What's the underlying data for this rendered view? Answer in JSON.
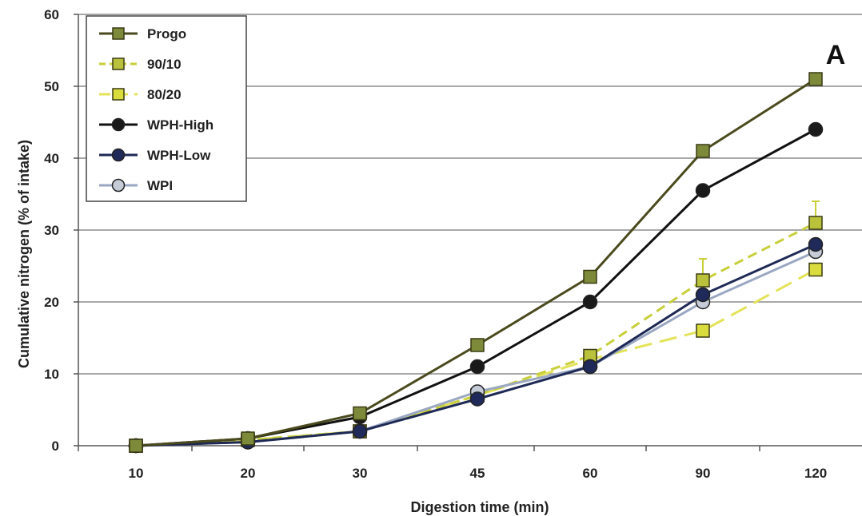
{
  "chart_data": {
    "type": "line",
    "panel_label": "A",
    "xlabel": "Digestion time (min)",
    "ylabel": "Cumulative nitrogen (% of intake)",
    "categories": [
      "10",
      "20",
      "30",
      "45",
      "60",
      "90",
      "120"
    ],
    "ylim": [
      0,
      60
    ],
    "yticks": [
      0,
      10,
      20,
      30,
      40,
      50,
      60
    ],
    "grid": "horizontal",
    "legend_position": "top-left",
    "series": [
      {
        "name": "Progo",
        "values": [
          0,
          1,
          4.5,
          14,
          23.5,
          41,
          51
        ],
        "color": "#4a4a1e",
        "dash": "solid",
        "marker": "square",
        "fill": "#7d8a3a"
      },
      {
        "name": "90/10",
        "values": [
          0,
          0.8,
          2,
          7,
          12.5,
          23,
          31
        ],
        "color": "#c8cf3a",
        "dash": "dashed",
        "marker": "square",
        "fill": "#b9c23a",
        "error_bars": [
          0,
          0,
          0,
          0,
          0,
          3,
          3
        ]
      },
      {
        "name": "80/20",
        "values": [
          0,
          0.8,
          2,
          7,
          12,
          16,
          24.5
        ],
        "color": "#e3e35a",
        "dash": "longdash",
        "marker": "square",
        "fill": "#d9dc3c"
      },
      {
        "name": "WPH-High",
        "values": [
          0,
          1,
          4,
          11,
          20,
          35.5,
          44
        ],
        "color": "#111111",
        "dash": "solid",
        "marker": "circle",
        "fill": "#1a1a1a"
      },
      {
        "name": "WPH-Low",
        "values": [
          0,
          0.5,
          2,
          6.5,
          11,
          21,
          28
        ],
        "color": "#1e2a55",
        "dash": "solid",
        "marker": "circle",
        "fill": "#1f2a5a"
      },
      {
        "name": "WPI",
        "values": [
          0,
          0.5,
          2,
          7.5,
          11,
          20,
          27
        ],
        "color": "#9aa7c2",
        "dash": "solid",
        "marker": "circle",
        "fill": "#c5ccd8"
      }
    ]
  }
}
